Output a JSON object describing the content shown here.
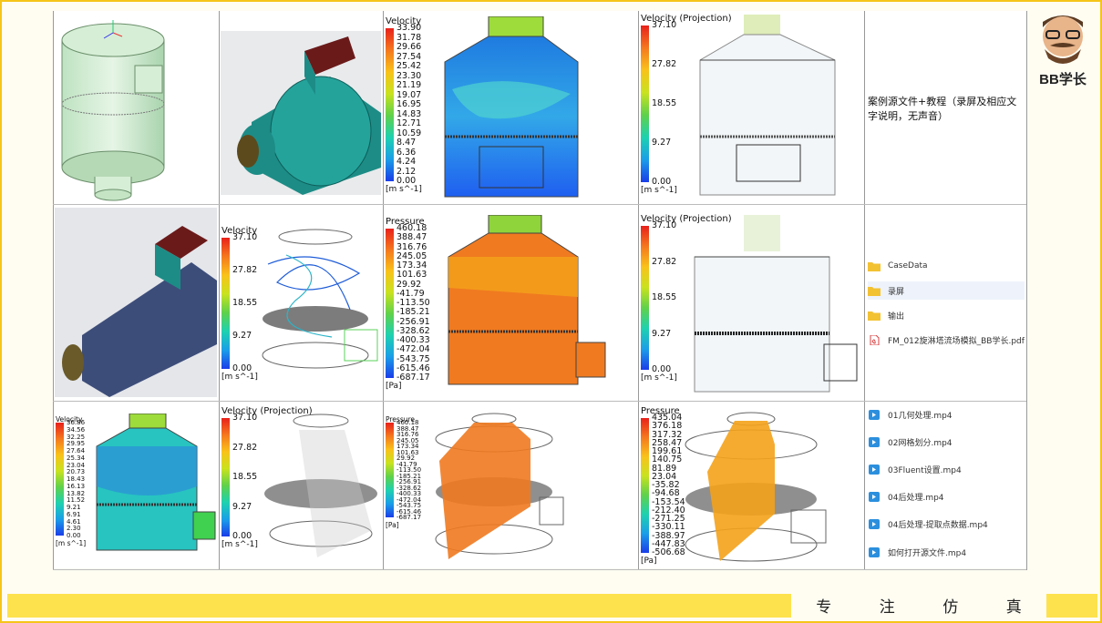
{
  "description": "案例源文件+教程（录屏及相应文字说明，无声音）",
  "motto": [
    "专",
    "注",
    "仿",
    "真"
  ],
  "logo_text": "BB学长",
  "legends": {
    "r1c3": {
      "title": "Velocity",
      "unit": "[m s^-1]",
      "ticks": [
        "33.90",
        "31.78",
        "29.66",
        "27.54",
        "25.42",
        "23.30",
        "21.19",
        "19.07",
        "16.95",
        "14.83",
        "12.71",
        "10.59",
        "8.47",
        "6.36",
        "4.24",
        "2.12",
        "0.00"
      ]
    },
    "r1c4": {
      "title": "Velocity (Projection)",
      "unit": "[m s^-1]",
      "ticks": [
        "37.10",
        "27.82",
        "18.55",
        "9.27",
        "0.00"
      ]
    },
    "r2c2": {
      "title": "Velocity",
      "unit": "[m s^-1]",
      "ticks": [
        "37.10",
        "27.82",
        "18.55",
        "9.27",
        "0.00"
      ]
    },
    "r2c3": {
      "title": "Pressure",
      "unit": "[Pa]",
      "ticks": [
        "460.18",
        "388.47",
        "316.76",
        "245.05",
        "173.34",
        "101.63",
        "29.92",
        "-41.79",
        "-113.50",
        "-185.21",
        "-256.91",
        "-328.62",
        "-400.33",
        "-472.04",
        "-543.75",
        "-615.46",
        "-687.17"
      ]
    },
    "r2c4": {
      "title": "Velocity (Projection)",
      "unit": "[m s^-1]",
      "ticks": [
        "37.10",
        "27.82",
        "18.55",
        "9.27",
        "0.00"
      ]
    },
    "r3c1": {
      "title": "Velocity",
      "unit": "[m s^-1]",
      "ticks": [
        "36.86",
        "34.56",
        "32.25",
        "29.95",
        "27.64",
        "25.34",
        "23.04",
        "20.73",
        "18.43",
        "16.13",
        "13.82",
        "11.52",
        "9.21",
        "6.91",
        "4.61",
        "2.30",
        "0.00"
      ]
    },
    "r3c2": {
      "title": "Velocity (Projection)",
      "unit": "[m s^-1]",
      "ticks": [
        "37.10",
        "27.82",
        "18.55",
        "9.27",
        "0.00"
      ]
    },
    "r3c3": {
      "title": "Pressure",
      "unit": "[Pa]",
      "ticks": [
        "460.18",
        "388.47",
        "316.76",
        "245.05",
        "173.34",
        "101.63",
        "29.92",
        "-41.79",
        "-113.50",
        "-185.21",
        "-256.91",
        "-328.62",
        "-400.33",
        "-472.04",
        "-543.75",
        "-615.46",
        "-687.17"
      ]
    },
    "r3c4": {
      "title": "Pressure",
      "unit": "[Pa]",
      "ticks": [
        "435.04",
        "376.18",
        "317.32",
        "258.47",
        "199.61",
        "140.75",
        "81.89",
        "23.04",
        "-35.82",
        "-94.68",
        "-153.54",
        "-212.40",
        "-271.25",
        "-330.11",
        "-388.97",
        "-447.83",
        "-506.68"
      ]
    }
  },
  "folders": [
    {
      "name": "CaseData",
      "icon": "folder-icon"
    },
    {
      "name": "录屏",
      "icon": "folder-icon",
      "selected": true
    },
    {
      "name": "输出",
      "icon": "folder-icon"
    },
    {
      "name": "FM_012旋淋塔流场模拟_BB学长.pdf",
      "icon": "pdf-icon"
    }
  ],
  "videos": [
    {
      "name": "01几何处理.mp4",
      "icon": "video-icon"
    },
    {
      "name": "02网格划分.mp4",
      "icon": "video-icon"
    },
    {
      "name": "03Fluent设置.mp4",
      "icon": "video-icon"
    },
    {
      "name": "04后处理.mp4",
      "icon": "video-icon"
    },
    {
      "name": "04后处理-提取点数据.mp4",
      "icon": "video-icon"
    },
    {
      "name": "如何打开源文件.mp4",
      "icon": "video-icon"
    }
  ],
  "colors": {
    "frame": "#f5c518",
    "bar": "#fde24d",
    "folder": "#f3c233",
    "video": "#2b8fde",
    "pdf": "#d94040"
  }
}
